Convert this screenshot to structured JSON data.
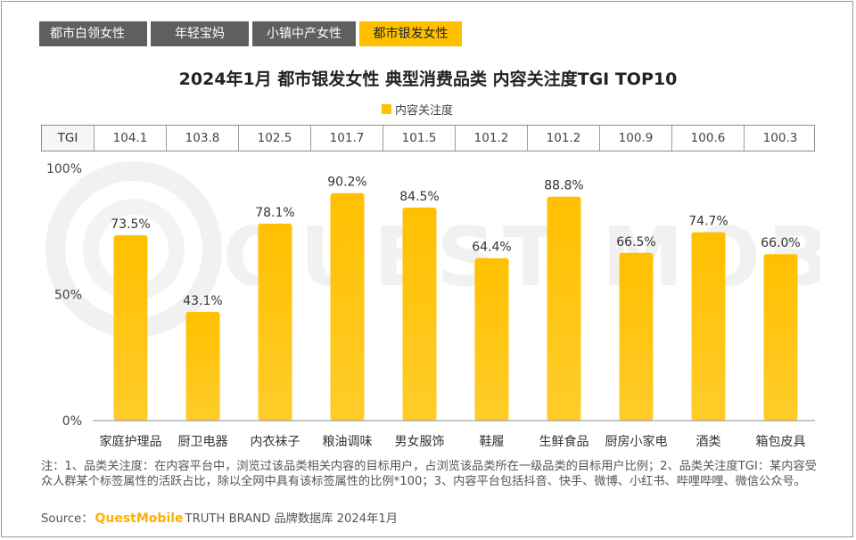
{
  "tabs": [
    {
      "label": "都市白领女性",
      "active": false
    },
    {
      "label": "年轻宝妈",
      "active": false
    },
    {
      "label": "小镇中产女性",
      "active": false
    },
    {
      "label": "都市银发女性",
      "active": true
    }
  ],
  "watermark_text": "QUEST MOBILE",
  "colors": {
    "accent": "#ffc000",
    "tab_bg": "#5f5f5f"
  },
  "chart_data": {
    "type": "bar",
    "title": "2024年1月 都市银发女性 典型消费品类 内容关注度TGI TOP10",
    "legend": [
      "内容关注度"
    ],
    "categories": [
      "家庭护理品",
      "厨卫电器",
      "内衣袜子",
      "粮油调味",
      "男女服饰",
      "鞋履",
      "生鲜食品",
      "厨房小家电",
      "酒类",
      "箱包皮具"
    ],
    "values": [
      73.5,
      43.1,
      78.1,
      90.2,
      84.5,
      64.4,
      88.8,
      66.5,
      74.7,
      66.0
    ],
    "value_labels": [
      "73.5%",
      "43.1%",
      "78.1%",
      "90.2%",
      "84.5%",
      "64.4%",
      "88.8%",
      "66.5%",
      "74.7%",
      "66.0%"
    ],
    "ylim": [
      0,
      100
    ],
    "yticks": [
      0,
      50,
      100
    ],
    "ytick_labels": [
      "0%",
      "50%",
      "100%"
    ],
    "xlabel": "",
    "ylabel": "",
    "tgi_header": "TGI",
    "tgi_values": [
      "104.1",
      "103.8",
      "102.5",
      "101.7",
      "101.5",
      "101.2",
      "101.2",
      "100.9",
      "100.6",
      "100.3"
    ]
  },
  "notes": "注：1、品类关注度：在内容平台中，浏览过该品类相关内容的目标用户，占浏览该品类所在一级品类的目标用户比例；2、品类关注度TGI：某内容受众人群某个标签属性的活跃占比，除以全网中具有该标签属性的比例*100；3、内容平台包括抖音、快手、微博、小红书、哔哩哔哩、微信公众号。",
  "source": {
    "prefix": "Source：",
    "brand": "QuestMobile",
    "suffix": "TRUTH BRAND 品牌数据库 2024年1月"
  }
}
